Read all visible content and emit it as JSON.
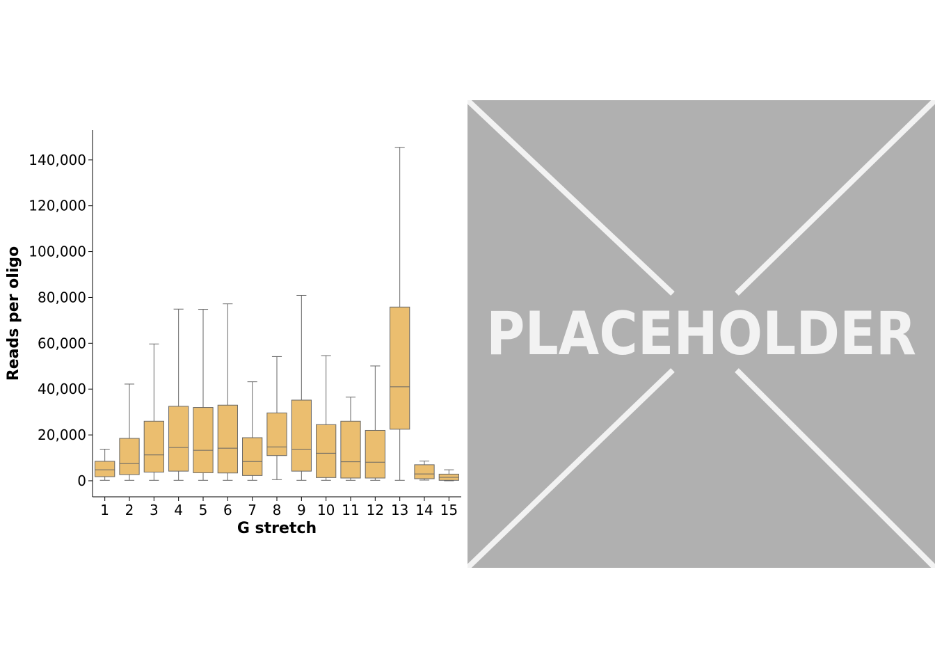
{
  "chart_data": {
    "type": "box",
    "xlabel": "G stretch",
    "ylabel": "Reads per oligo",
    "categories": [
      "1",
      "2",
      "3",
      "4",
      "5",
      "6",
      "7",
      "8",
      "9",
      "10",
      "11",
      "12",
      "13",
      "14",
      "15"
    ],
    "yticks": [
      0,
      20000,
      40000,
      60000,
      80000,
      100000,
      120000,
      140000
    ],
    "ytick_labels": [
      "0",
      "20,000",
      "40,000",
      "60,000",
      "80,000",
      "100,000",
      "120,000",
      "140,000"
    ],
    "ylim": [
      -7000,
      153000
    ],
    "box_color": "#EBBE6F",
    "line_color": "#666666",
    "boxes": [
      {
        "category": "1",
        "whislo": 200,
        "q1": 1800,
        "med": 4800,
        "q3": 8500,
        "whishi": 13800
      },
      {
        "category": "2",
        "whislo": 200,
        "q1": 2700,
        "med": 7500,
        "q3": 18500,
        "whishi": 42200
      },
      {
        "category": "3",
        "whislo": 200,
        "q1": 3800,
        "med": 11300,
        "q3": 26000,
        "whishi": 59700
      },
      {
        "category": "4",
        "whislo": 200,
        "q1": 4200,
        "med": 14500,
        "q3": 32500,
        "whishi": 74900
      },
      {
        "category": "5",
        "whislo": 200,
        "q1": 3500,
        "med": 13300,
        "q3": 32000,
        "whishi": 74800
      },
      {
        "category": "6",
        "whislo": 200,
        "q1": 3400,
        "med": 14200,
        "q3": 33000,
        "whishi": 77200
      },
      {
        "category": "7",
        "whislo": 200,
        "q1": 2300,
        "med": 8400,
        "q3": 18800,
        "whishi": 43200
      },
      {
        "category": "8",
        "whislo": 500,
        "q1": 11000,
        "med": 14800,
        "q3": 29600,
        "whishi": 54200
      },
      {
        "category": "9",
        "whislo": 200,
        "q1": 4200,
        "med": 13800,
        "q3": 35200,
        "whishi": 80900
      },
      {
        "category": "10",
        "whislo": 200,
        "q1": 1400,
        "med": 12000,
        "q3": 24500,
        "whishi": 54600
      },
      {
        "category": "11",
        "whislo": 200,
        "q1": 1200,
        "med": 8300,
        "q3": 26000,
        "whishi": 36500
      },
      {
        "category": "12",
        "whislo": 200,
        "q1": 1200,
        "med": 8100,
        "q3": 22000,
        "whishi": 50100
      },
      {
        "category": "13",
        "whislo": 200,
        "q1": 22500,
        "med": 41000,
        "q3": 75800,
        "whishi": 145500
      },
      {
        "category": "14",
        "whislo": 300,
        "q1": 900,
        "med": 3000,
        "q3": 7000,
        "whishi": 8600
      },
      {
        "category": "15",
        "whislo": 0,
        "q1": 200,
        "med": 1500,
        "q3": 2900,
        "whishi": 4800
      }
    ]
  },
  "placeholder": {
    "label": "PLACEHOLDER",
    "background": "#B0B0B0",
    "line_color": "#F2F2F2"
  }
}
